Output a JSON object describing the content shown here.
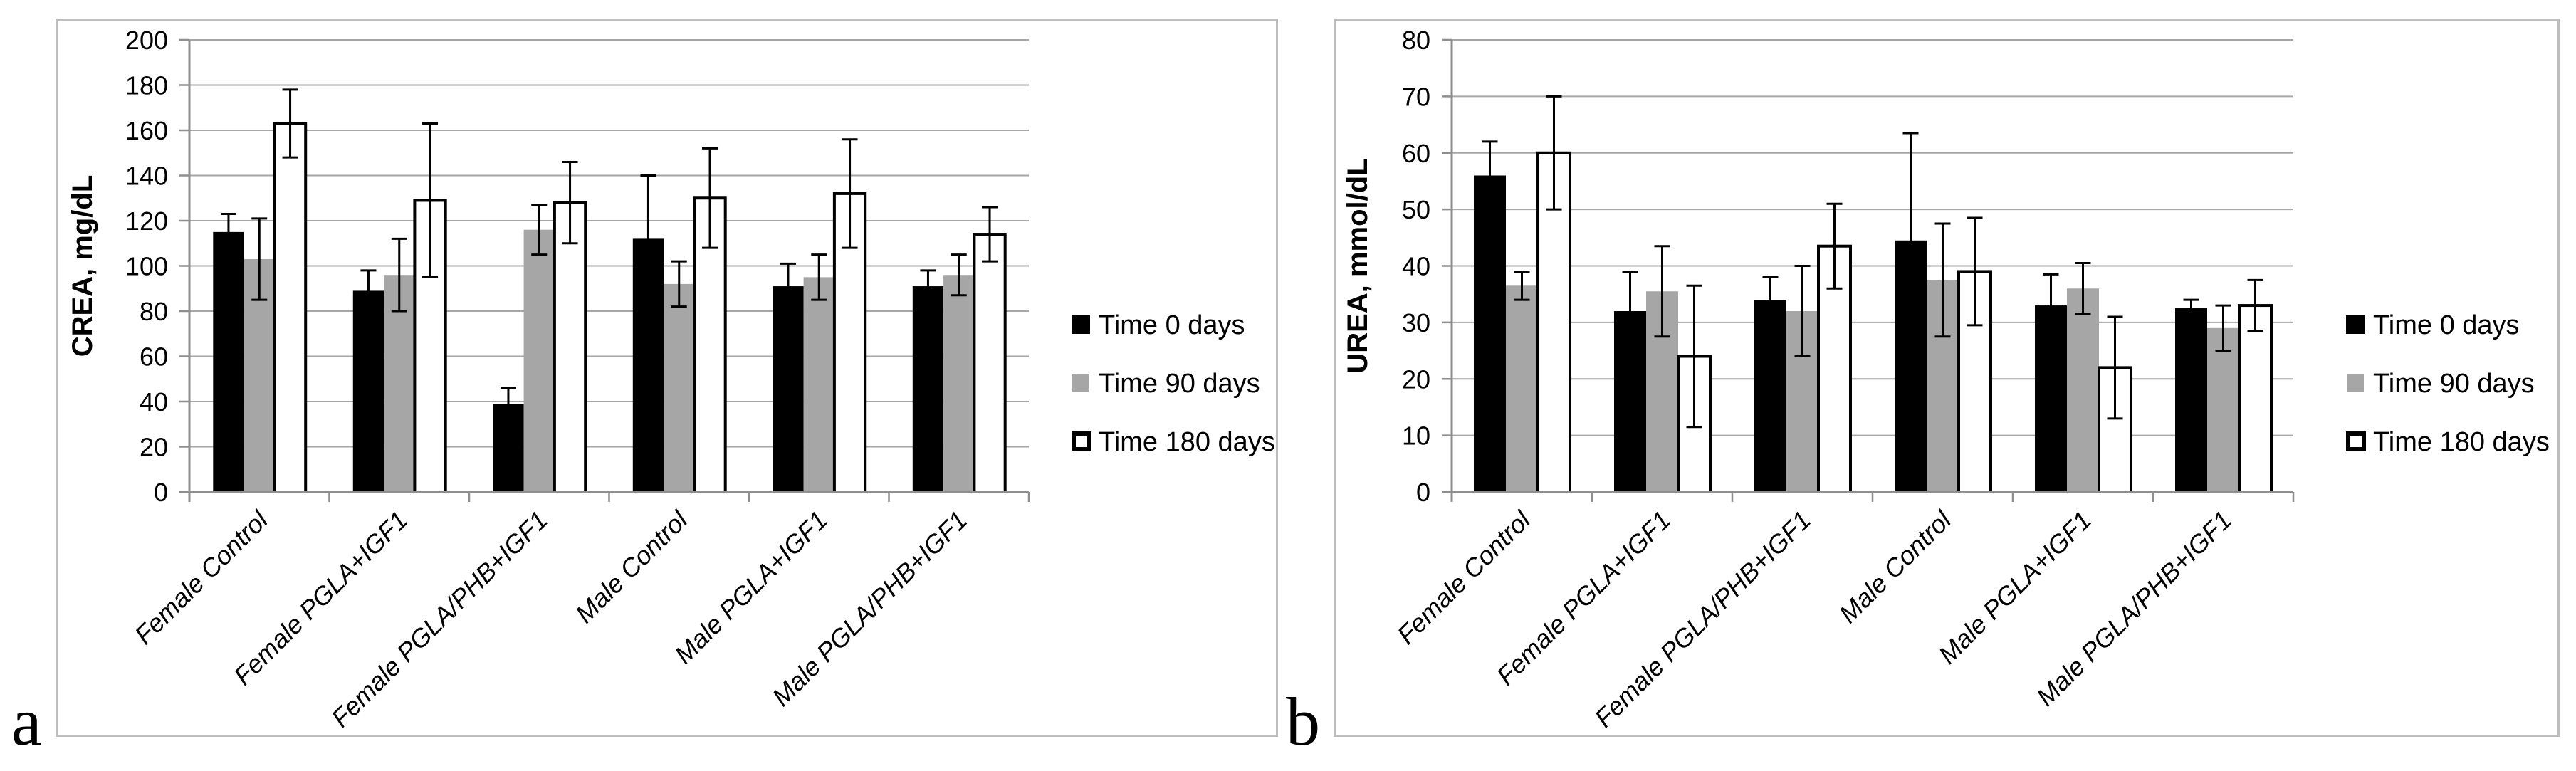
{
  "figure": {
    "panels": [
      {
        "corner_label": "a"
      },
      {
        "corner_label": "b"
      }
    ]
  },
  "legend": {
    "position": "right",
    "items": [
      {
        "label": "Time 0 days",
        "swatch": "black-filled-square",
        "color": "#000000"
      },
      {
        "label": "Time 90 days",
        "swatch": "gray-filled-square",
        "color": "#a6a6a6"
      },
      {
        "label": "Time 180 days",
        "swatch": "white-outlined-square",
        "color": "#ffffff"
      }
    ]
  },
  "colors": {
    "black_series": "#000000",
    "gray_series": "#a6a6a6",
    "white_series_fill": "#ffffff",
    "bar_outline": "#000000",
    "gridline": "#a6a6a6",
    "axis": "#8f8f8f",
    "panel_border": "#bdbdbd",
    "text": "#000000"
  },
  "chart_data": [
    {
      "id": "a",
      "type": "bar",
      "title": "",
      "ylabel": "CREA, mg/dL",
      "xlabel": "",
      "ylim": [
        0,
        200
      ],
      "ytick_step": 20,
      "grid": true,
      "legend_position": "right",
      "categories": [
        "Female Control",
        "Female PGLA+IGF1",
        "Female PGLA/PHB+IGF1",
        "Male Control",
        "Male PGLA+IGF1",
        "Male PGLA/PHB+IGF1"
      ],
      "series": [
        {
          "name": "Time 0 days",
          "style": "black",
          "values": [
            115,
            89,
            39,
            112,
            91,
            91
          ],
          "errors": [
            8,
            9,
            7,
            28,
            10,
            7
          ]
        },
        {
          "name": "Time 90 days",
          "style": "gray",
          "values": [
            103,
            96,
            116,
            92,
            95,
            96
          ],
          "errors": [
            18,
            16,
            11,
            10,
            10,
            9
          ]
        },
        {
          "name": "Time 180 days",
          "style": "white",
          "values": [
            163,
            129,
            128,
            130,
            132,
            114
          ],
          "errors": [
            15,
            34,
            18,
            22,
            24,
            12
          ]
        }
      ]
    },
    {
      "id": "b",
      "type": "bar",
      "title": "",
      "ylabel": "UREA, mmol/dL",
      "xlabel": "",
      "ylim": [
        0,
        80
      ],
      "ytick_step": 10,
      "grid": true,
      "legend_position": "right",
      "categories": [
        "Female Control",
        "Female PGLA+IGF1",
        "Female PGLA/PHB+IGF1",
        "Male Control",
        "Male PGLA+IGF1",
        "Male PGLA/PHB+IGF1"
      ],
      "series": [
        {
          "name": "Time 0 days",
          "style": "black",
          "values": [
            56,
            32,
            34,
            44.5,
            33,
            32.5
          ],
          "errors": [
            6,
            7,
            4,
            19,
            5.5,
            1.5
          ]
        },
        {
          "name": "Time 90 days",
          "style": "gray",
          "values": [
            36.5,
            35.5,
            32,
            37.5,
            36,
            29
          ],
          "errors": [
            2.5,
            8,
            8,
            10,
            4.5,
            4
          ]
        },
        {
          "name": "Time 180 days",
          "style": "white",
          "values": [
            60,
            24,
            43.5,
            39,
            22,
            33
          ],
          "errors": [
            10,
            12.5,
            7.5,
            9.5,
            9,
            4.5
          ]
        }
      ]
    }
  ]
}
